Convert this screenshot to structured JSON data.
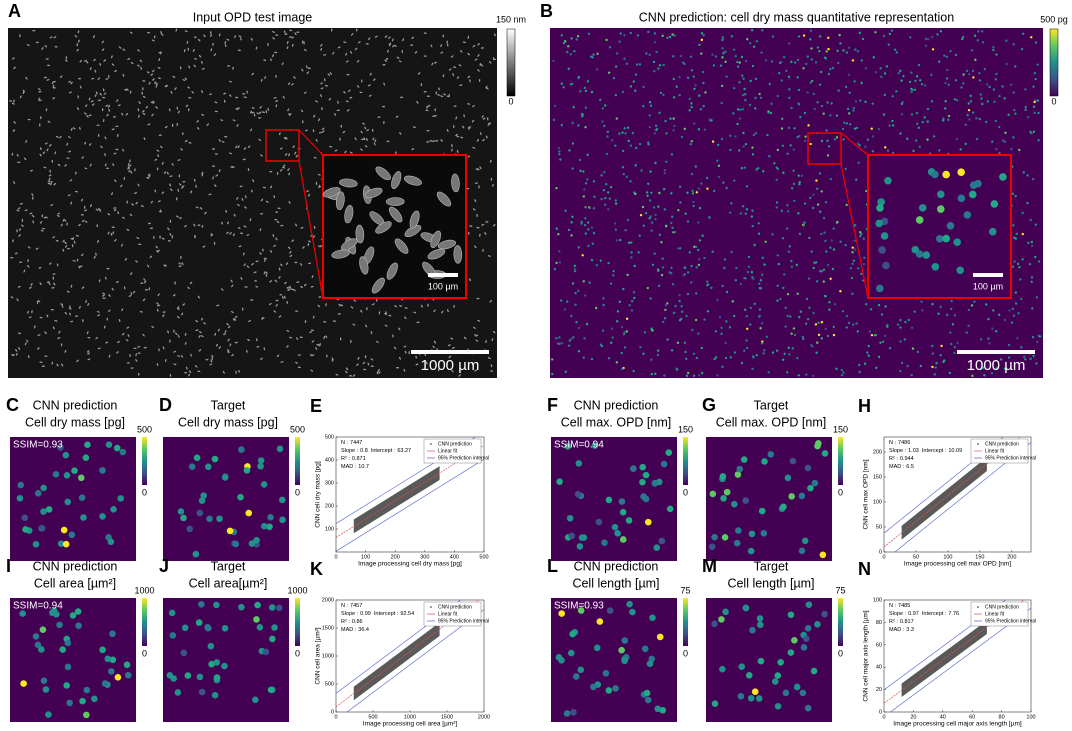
{
  "panels": [
    {
      "letter": "A",
      "title": "Input OPD test image",
      "colorbar": {
        "max": "150 nm",
        "min": 0
      },
      "inset_scale": "100 µm",
      "scale_bar": "1000 µm"
    },
    {
      "letter": "B",
      "title": "CNN prediction: cell dry mass quantitative representation",
      "colorbar": {
        "max": "500 pg",
        "min": 0
      },
      "inset_scale": "100 µm",
      "scale_bar": "1000 µm"
    }
  ],
  "maps": [
    {
      "letter": "C",
      "title": [
        "CNN prediction",
        "Cell dry mass [pg]"
      ],
      "ssim": "SSIM=0.93",
      "colorbar": {
        "max": 500,
        "min": 0
      }
    },
    {
      "letter": "D",
      "title": [
        "Target",
        "Cell dry mass [pg]"
      ],
      "colorbar": {
        "max": 500,
        "min": 0
      }
    },
    {
      "letter": "F",
      "title": [
        "CNN prediction",
        "Cell max. OPD [nm]"
      ],
      "ssim": "SSIM=0.94",
      "colorbar": {
        "max": 150,
        "min": 0
      }
    },
    {
      "letter": "G",
      "title": [
        "Target",
        "Cell max. OPD [nm]"
      ],
      "colorbar": {
        "max": 150,
        "min": 0
      }
    },
    {
      "letter": "I",
      "title": [
        "CNN prediction",
        "Cell area [µm²]"
      ],
      "ssim": "SSIM=0.94",
      "colorbar": {
        "max": 1000,
        "min": 0
      }
    },
    {
      "letter": "J",
      "title": [
        "Target",
        "Cell area[µm²]"
      ],
      "colorbar": {
        "max": 1000,
        "min": 0
      }
    },
    {
      "letter": "L",
      "title": [
        "CNN prediction",
        "Cell length [µm]"
      ],
      "ssim": "SSIM=0.93",
      "colorbar": {
        "max": 75,
        "min": 0
      }
    },
    {
      "letter": "M",
      "title": [
        "Target",
        "Cell length [µm]"
      ],
      "colorbar": {
        "max": 75,
        "min": 0
      }
    }
  ],
  "scatters": [
    {
      "letter": "E",
      "xlabel": "Image processing cell dry mass [pg]",
      "ylabel": "CNN cell dry mass [pg]",
      "xlim": [
        0,
        500
      ],
      "ylim": [
        0,
        500
      ],
      "xticks": [
        0,
        100,
        200,
        300,
        400,
        500
      ],
      "yticks": [
        100,
        200,
        300,
        400,
        500
      ],
      "stats": {
        "n": {
          "label": "N :",
          "value": 7447
        },
        "slope": {
          "label": "Slope :",
          "value": 0.8
        },
        "intercept": {
          "label": "Intercept :",
          "value": 63.27
        },
        "r2": {
          "label": "R² :",
          "value": 0.871
        },
        "mad": {
          "label": "MAD :",
          "value": 10.7
        }
      },
      "legend": [
        "CNN prediction",
        "Linear fit",
        "95% Prediction interval"
      ]
    },
    {
      "letter": "H",
      "xlabel": "Image processing cell max OPD [nm]",
      "ylabel": "CNN cell max OPD [nm]",
      "xlim": [
        0,
        230
      ],
      "ylim": [
        0,
        230
      ],
      "xticks": [
        0,
        50,
        100,
        150,
        200
      ],
      "yticks": [
        0,
        50,
        100,
        150,
        200
      ],
      "stats": {
        "n": {
          "label": "N :",
          "value": 7486
        },
        "slope": {
          "label": "Slope :",
          "value": 1.03
        },
        "intercept": {
          "label": "Intercept :",
          "value": 10.09
        },
        "r2": {
          "label": "R² :",
          "value": 0.944
        },
        "mad": {
          "label": "MAD :",
          "value": 6.5
        }
      },
      "legend": [
        "CNN prediction",
        "Linear fit",
        "95% Prediction interval"
      ]
    },
    {
      "letter": "K",
      "xlabel": "Image processing cell area [µm²]",
      "ylabel": "CNN cell area [µm²]",
      "xlim": [
        0,
        2000
      ],
      "ylim": [
        0,
        2000
      ],
      "xticks": [
        0,
        500,
        1000,
        1500,
        2000
      ],
      "yticks": [
        0,
        500,
        1000,
        1500,
        2000
      ],
      "stats": {
        "n": {
          "label": "N :",
          "value": 7457
        },
        "slope": {
          "label": "Slope :",
          "value": 0.99
        },
        "intercept": {
          "label": "Intercept :",
          "value": 92.54
        },
        "r2": {
          "label": "R² :",
          "value": 0.86
        },
        "mad": {
          "label": "MAD :",
          "value": 36.4
        }
      },
      "legend": [
        "CNN prediction",
        "Linear fit",
        "95% Prediction interval"
      ]
    },
    {
      "letter": "N",
      "xlabel": "Image processing cell major axis length [µm]",
      "ylabel": "CNN cell major axis length [µm]",
      "xlim": [
        0,
        100
      ],
      "ylim": [
        0,
        100
      ],
      "xticks": [
        0,
        20,
        40,
        60,
        80,
        100
      ],
      "yticks": [
        0,
        20,
        40,
        60,
        80,
        100
      ],
      "stats": {
        "n": {
          "label": "N :",
          "value": 7485
        },
        "slope": {
          "label": "Slope :",
          "value": 0.97
        },
        "intercept": {
          "label": "Intercept :",
          "value": 7.76
        },
        "r2": {
          "label": "R² :",
          "value": 0.817
        },
        "mad": {
          "label": "MAD :",
          "value": 3.3
        }
      },
      "legend": [
        "CNN prediction",
        "Linear fit",
        "95% Prediction interval"
      ]
    }
  ]
}
